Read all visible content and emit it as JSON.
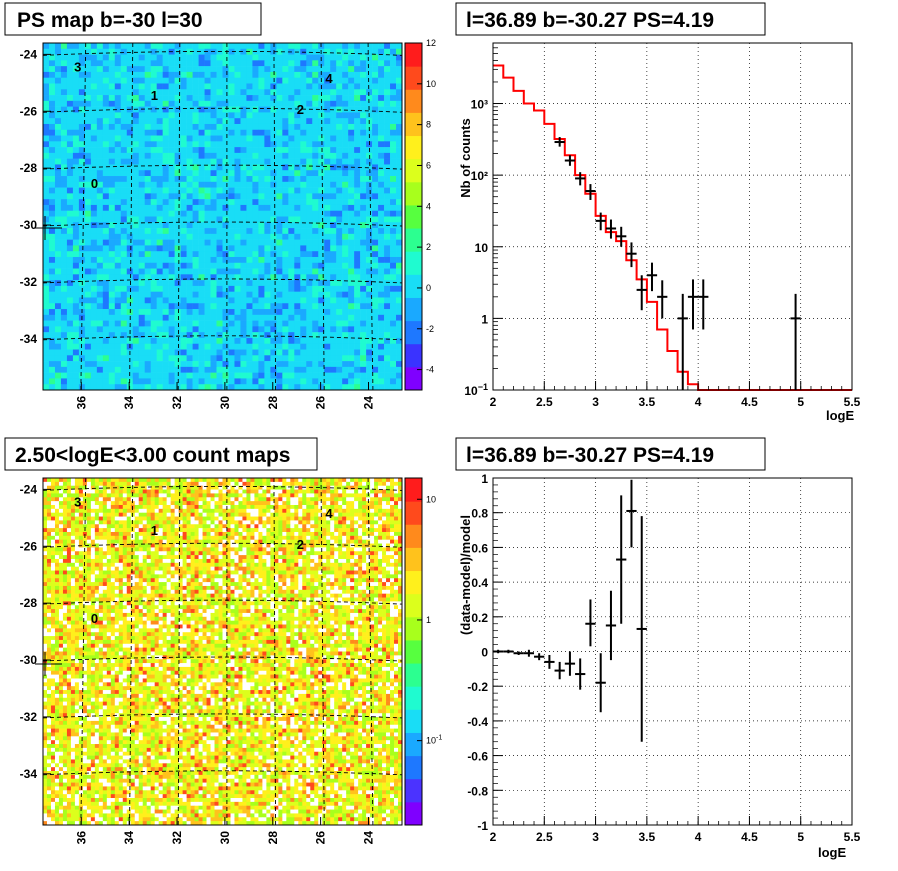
{
  "chart_data": [
    {
      "id": "ps-map",
      "type": "heatmap",
      "title": "PS map b=-30 l=30",
      "x_ticks": [
        "36",
        "34",
        "32",
        "30",
        "28",
        "26",
        "24"
      ],
      "y_ticks": [
        "-24",
        "-26",
        "-28",
        "-30",
        "-32",
        "-34"
      ],
      "xlim": [
        37.6,
        22.6
      ],
      "ylim": [
        -35.8,
        -23.6
      ],
      "colorbar_ticks": [
        "12",
        "10",
        "8",
        "6",
        "4",
        "2",
        "0",
        "-2",
        "-4"
      ],
      "colorbar_range": [
        -5,
        12
      ],
      "colors": [
        "#7f00ff",
        "#3a33ff",
        "#1e78ff",
        "#1aa9ff",
        "#19ddf6",
        "#1ffbd0",
        "#2cff90",
        "#57ff3f",
        "#a8ff1c",
        "#dcff1c",
        "#fff01c",
        "#ffc21c",
        "#ff8a1c",
        "#ff4a1c",
        "#ff1c1c"
      ],
      "sources": [
        {
          "label": "3",
          "x": 36.3,
          "y": -24.6
        },
        {
          "label": "1",
          "x": 33.1,
          "y": -25.6
        },
        {
          "label": "4",
          "x": 25.8,
          "y": -25.0
        },
        {
          "label": "2",
          "x": 27.0,
          "y": -26.1
        },
        {
          "label": "0",
          "x": 35.6,
          "y": -28.7
        }
      ]
    },
    {
      "id": "spectrum",
      "type": "line",
      "title": "l=36.89 b=-30.27 PS=4.19",
      "xlabel": "logE",
      "ylabel": "Nb of counts",
      "xlim": [
        2,
        5.5
      ],
      "ylim": [
        0.1,
        7000
      ],
      "log_y": true,
      "x_ticks": [
        "2",
        "2.5",
        "3",
        "3.5",
        "4",
        "4.5",
        "5",
        "5.5"
      ],
      "y_ticks": [
        "10-1",
        "1",
        "10",
        "10²",
        "10³"
      ],
      "grid": true,
      "model_color": "#ff0000",
      "model_step": {
        "x": [
          2.0,
          2.1,
          2.2,
          2.3,
          2.4,
          2.5,
          2.6,
          2.7,
          2.8,
          2.9,
          3.0,
          3.1,
          3.2,
          3.3,
          3.4,
          3.5,
          3.6,
          3.7,
          3.8,
          3.9,
          4.0,
          5.5
        ],
        "y": [
          3400,
          2300,
          1500,
          1000,
          800,
          520,
          320,
          190,
          100,
          55,
          27,
          16,
          12,
          6.5,
          3.5,
          1.7,
          0.7,
          0.35,
          0.18,
          0.12,
          0.1,
          0.1
        ]
      },
      "points": [
        {
          "x": 2.65,
          "y": 290,
          "lo": 250,
          "hi": 340
        },
        {
          "x": 2.75,
          "y": 160,
          "lo": 135,
          "hi": 190
        },
        {
          "x": 2.85,
          "y": 90,
          "lo": 72,
          "hi": 110
        },
        {
          "x": 2.95,
          "y": 60,
          "lo": 45,
          "hi": 75
        },
        {
          "x": 3.05,
          "y": 23,
          "lo": 17,
          "hi": 30
        },
        {
          "x": 3.15,
          "y": 18,
          "lo": 13,
          "hi": 24
        },
        {
          "x": 3.25,
          "y": 14,
          "lo": 10,
          "hi": 19
        },
        {
          "x": 3.35,
          "y": 8,
          "lo": 5.2,
          "hi": 11.5
        },
        {
          "x": 3.45,
          "y": 2.5,
          "lo": 1.3,
          "hi": 4.0
        },
        {
          "x": 3.55,
          "y": 4,
          "lo": 2.4,
          "hi": 6.0
        },
        {
          "x": 3.65,
          "y": 2,
          "lo": 1.0,
          "hi": 3.4
        },
        {
          "x": 3.85,
          "y": 1,
          "lo": 0.1,
          "hi": 2.2
        },
        {
          "x": 3.95,
          "y": 2,
          "lo": 0.7,
          "hi": 3.5
        },
        {
          "x": 4.05,
          "y": 2,
          "lo": 0.7,
          "hi": 3.5
        },
        {
          "x": 4.95,
          "y": 1,
          "lo": 0.1,
          "hi": 2.2
        }
      ]
    },
    {
      "id": "count-map",
      "type": "heatmap",
      "title": "2.50<logE<3.00 count maps",
      "x_ticks": [
        "36",
        "34",
        "32",
        "30",
        "28",
        "26",
        "24"
      ],
      "y_ticks": [
        "-24",
        "-26",
        "-28",
        "-30",
        "-32",
        "-34"
      ],
      "xlim": [
        37.6,
        22.6
      ],
      "ylim": [
        -35.8,
        -23.6
      ],
      "log_color": true,
      "colorbar_ticks": [
        "10",
        "1",
        "10-1"
      ],
      "colorbar_range": [
        0.02,
        15
      ],
      "colors": [
        "#7f00ff",
        "#4b33ff",
        "#1e78ff",
        "#1aa9ff",
        "#19ddf6",
        "#1ffbd0",
        "#2cff90",
        "#57ff3f",
        "#a8ff1c",
        "#dcff1c",
        "#fff01c",
        "#ffc21c",
        "#ff8a1c",
        "#ff4a1c",
        "#ff1c1c"
      ],
      "sources": [
        {
          "label": "3",
          "x": 36.3,
          "y": -24.6
        },
        {
          "label": "1",
          "x": 33.1,
          "y": -25.6
        },
        {
          "label": "4",
          "x": 25.8,
          "y": -25.0
        },
        {
          "label": "2",
          "x": 27.0,
          "y": -26.1
        },
        {
          "label": "0",
          "x": 35.6,
          "y": -28.7
        }
      ]
    },
    {
      "id": "residuals",
      "type": "scatter",
      "title": "l=36.89 b=-30.27 PS=4.19",
      "xlabel": "logE",
      "ylabel": "(data-model)/model",
      "xlim": [
        2,
        5.5
      ],
      "ylim": [
        -1,
        1
      ],
      "x_ticks": [
        "2",
        "2.5",
        "3",
        "3.5",
        "4",
        "4.5",
        "5",
        "5.5"
      ],
      "y_ticks": [
        "-1",
        "-0.8",
        "-0.6",
        "-0.4",
        "-0.2",
        "0",
        "0.2",
        "0.4",
        "0.6",
        "0.8",
        "1"
      ],
      "grid": true,
      "points": [
        {
          "x": 2.05,
          "y": 0.0,
          "lo": -0.01,
          "hi": 0.01
        },
        {
          "x": 2.15,
          "y": 0.0,
          "lo": -0.01,
          "hi": 0.01
        },
        {
          "x": 2.25,
          "y": -0.01,
          "lo": -0.02,
          "hi": 0.0
        },
        {
          "x": 2.35,
          "y": -0.01,
          "lo": -0.03,
          "hi": 0.01
        },
        {
          "x": 2.45,
          "y": -0.03,
          "lo": -0.05,
          "hi": -0.01
        },
        {
          "x": 2.55,
          "y": -0.06,
          "lo": -0.1,
          "hi": -0.02
        },
        {
          "x": 2.65,
          "y": -0.11,
          "lo": -0.16,
          "hi": -0.06
        },
        {
          "x": 2.75,
          "y": -0.07,
          "lo": -0.14,
          "hi": 0.0
        },
        {
          "x": 2.85,
          "y": -0.13,
          "lo": -0.22,
          "hi": -0.04
        },
        {
          "x": 2.95,
          "y": 0.16,
          "lo": 0.03,
          "hi": 0.3
        },
        {
          "x": 3.05,
          "y": -0.18,
          "lo": -0.35,
          "hi": -0.01
        },
        {
          "x": 3.15,
          "y": 0.15,
          "lo": -0.05,
          "hi": 0.35
        },
        {
          "x": 3.25,
          "y": 0.53,
          "lo": 0.16,
          "hi": 0.9
        },
        {
          "x": 3.35,
          "y": 0.81,
          "lo": 0.6,
          "hi": 0.99
        },
        {
          "x": 3.45,
          "y": 0.13,
          "lo": -0.52,
          "hi": 0.78
        }
      ]
    }
  ]
}
